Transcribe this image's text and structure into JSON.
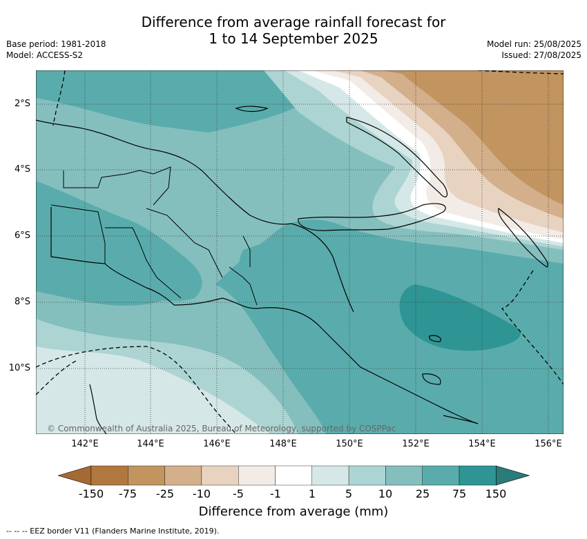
{
  "title": {
    "line1": "Difference from average rainfall forecast for",
    "line2": "1 to 14 September 2025"
  },
  "meta": {
    "base_period": "Base period: 1981-2018",
    "model": "Model: ACCESS-S2",
    "model_run": "Model run: 25/08/2025",
    "issued": "Issued: 27/08/2025"
  },
  "axes": {
    "lat_labels": [
      "2°S",
      "4°S",
      "6°S",
      "8°S",
      "10°S"
    ],
    "lon_labels": [
      "142°E",
      "144°E",
      "146°E",
      "148°E",
      "150°E",
      "152°E",
      "154°E",
      "156°E"
    ]
  },
  "copyright": "© Commonwealth of Australia 2025, Bureau of Meteorology, supported by COSPPac",
  "colorbar": {
    "labels": [
      "-150",
      "-75",
      "-25",
      "-10",
      "-5",
      "-1",
      "1",
      "5",
      "10",
      "25",
      "75",
      "150"
    ],
    "colors": [
      "#a36b33",
      "#b07840",
      "#c2945f",
      "#d3af8c",
      "#e8d3c1",
      "#f3ebe6",
      "#ffffff",
      "#d5e8e7",
      "#acd4d3",
      "#84bfbe",
      "#5aacac",
      "#2e9594",
      "#2a7b79"
    ],
    "title": "Difference from average (mm)"
  },
  "footnote": "--  --  -- EEZ border V11 (Flanders Marine Institute, 2019)."
}
